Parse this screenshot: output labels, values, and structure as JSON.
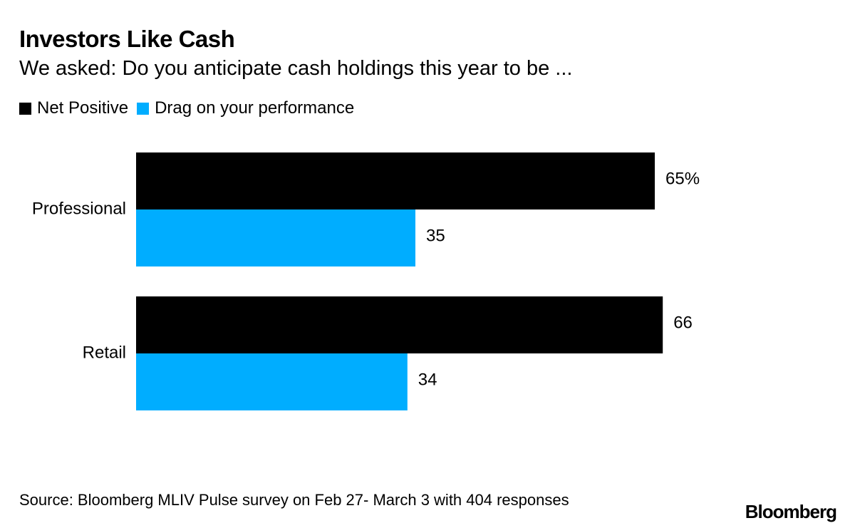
{
  "colors": {
    "net_positive": "#000000",
    "drag": "#00adff"
  },
  "chart_data": {
    "type": "bar",
    "orientation": "horizontal",
    "title": "Investors Like Cash",
    "subtitle": "We asked: Do you anticipate cash holdings this year to be ...",
    "categories": [
      "Professional",
      "Retail"
    ],
    "series": [
      {
        "name": "Net Positive",
        "values": [
          65,
          66
        ],
        "labels": [
          "65%",
          "66"
        ]
      },
      {
        "name": "Drag on your performance",
        "values": [
          35,
          34
        ],
        "labels": [
          "35",
          "34"
        ]
      }
    ],
    "xlim": [
      0,
      100
    ],
    "grid": false,
    "legend_position": "top-left",
    "source": "Source: Bloomberg MLIV Pulse survey on Feb 27- March 3 with 404 responses"
  },
  "branding": {
    "logo_text": "Bloomberg"
  }
}
